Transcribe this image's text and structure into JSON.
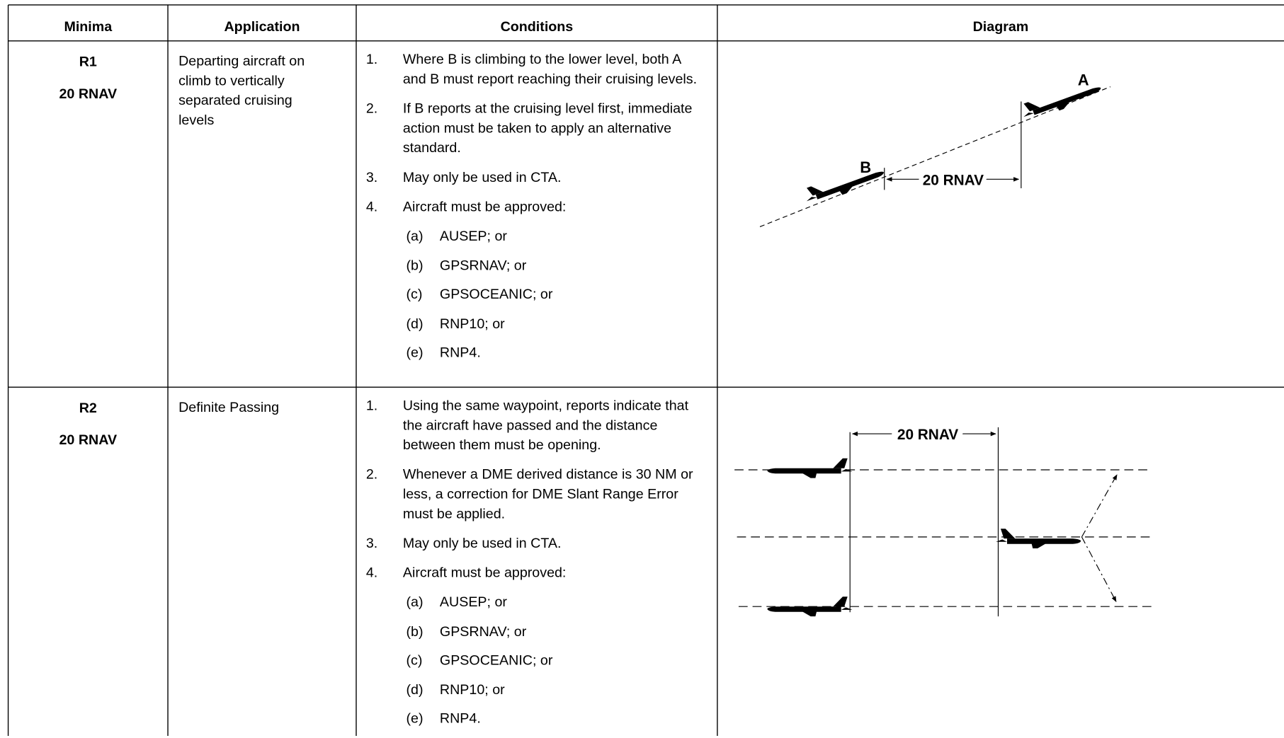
{
  "table": {
    "headers": [
      "Minima",
      "Application",
      "Conditions",
      "Diagram"
    ],
    "rows": [
      {
        "minima": "R1",
        "distance": "20 RNAV",
        "application": "Departing aircraft on climb to vertically separated cruising levels",
        "conditions": [
          {
            "number": "1.",
            "text": "Where B is climbing to the lower level, both A and B must report reaching their cruising levels."
          },
          {
            "number": "2.",
            "text": "If B reports at the cruising level first, immediate action must be taken to apply an alternative standard."
          },
          {
            "number": "3.",
            "text": "May only be used in CTA."
          },
          {
            "number": "4.",
            "text": "Aircraft must be approved:"
          }
        ],
        "approvals": [
          {
            "label": "(a)",
            "text": "AUSEP; or"
          },
          {
            "label": "(b)",
            "text": "GPSRNAV; or"
          },
          {
            "label": "(c)",
            "text": "GPSOCEANIC; or"
          },
          {
            "label": "(d)",
            "text": "RNP10; or"
          },
          {
            "label": "(e)",
            "text": "RNP4."
          }
        ],
        "diagram": {
          "label_a": "A",
          "label_b": "B",
          "distance": "20 RNAV"
        }
      },
      {
        "minima": "R2",
        "distance": "20 RNAV",
        "application": "Definite Passing",
        "conditions": [
          {
            "number": "1.",
            "text": "Using the same waypoint, reports indicate that the aircraft have passed and the distance between them must be opening."
          },
          {
            "number": "2.",
            "text": "Whenever a DME derived distance is 30 NM or less, a correction for DME Slant Range Error must be applied."
          },
          {
            "number": "3.",
            "text": "May only be used in CTA."
          },
          {
            "number": "4.",
            "text": "Aircraft must be approved:"
          }
        ],
        "approvals": [
          {
            "label": "(a)",
            "text": "AUSEP; or"
          },
          {
            "label": "(b)",
            "text": "GPSRNAV; or"
          },
          {
            "label": "(c)",
            "text": "GPSOCEANIC; or"
          },
          {
            "label": "(d)",
            "text": "RNP10; or"
          },
          {
            "label": "(e)",
            "text": "RNP4."
          }
        ],
        "diagram": {
          "distance": "20 RNAV"
        }
      }
    ]
  }
}
